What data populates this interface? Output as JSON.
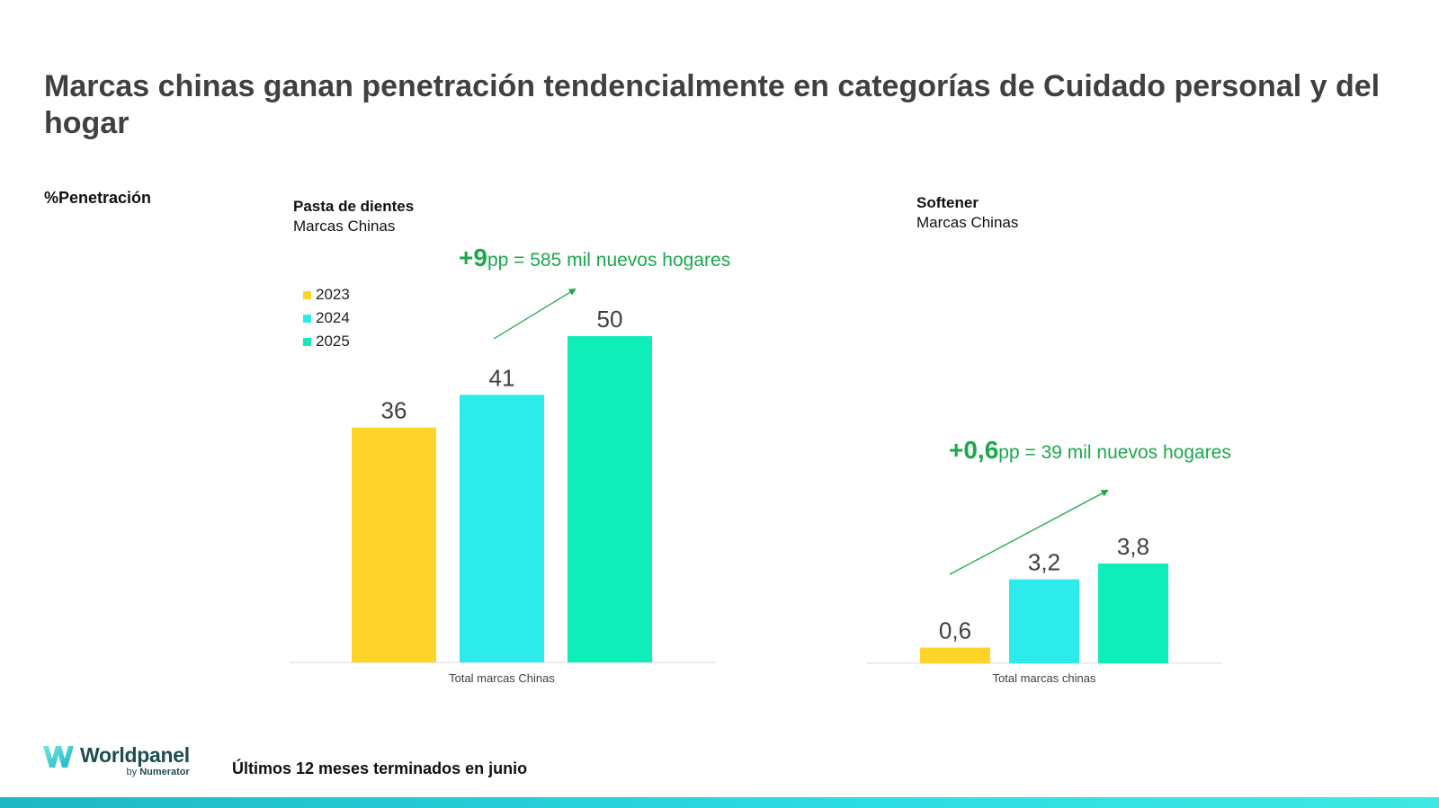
{
  "page": {
    "title": "Marcas chinas ganan penetración tendencialmente en categorías de Cuidado personal y del hogar",
    "metric_label": "%Penetración",
    "footer_note": "Últimos 12 meses terminados en junio",
    "logo": {
      "name": "Worldpanel",
      "by": "by",
      "brand": "Numerator"
    }
  },
  "colors": {
    "2023": "#FFD42A",
    "2024": "#2EEBEB",
    "2025": "#0FEDB8",
    "annotation": "#1AA84C"
  },
  "chart_data": [
    {
      "type": "bar",
      "title": "Pasta de dientes",
      "subtitle": "Marcas Chinas",
      "categories": [
        "Total marcas Chinas"
      ],
      "legend": [
        "2023",
        "2024",
        "2025"
      ],
      "series": [
        {
          "name": "2023",
          "values": [
            36
          ],
          "label": "36"
        },
        {
          "name": "2024",
          "values": [
            41
          ],
          "label": "41"
        },
        {
          "name": "2025",
          "values": [
            50
          ],
          "label": "50"
        }
      ],
      "ylim": [
        0,
        50
      ],
      "annotation": {
        "big": "+9",
        "rest": "pp = 585 mil nuevos hogares"
      }
    },
    {
      "type": "bar",
      "title": "Softener",
      "subtitle": "Marcas Chinas",
      "categories": [
        "Total marcas chinas"
      ],
      "series": [
        {
          "name": "2023",
          "values": [
            0.6
          ],
          "label": "0,6"
        },
        {
          "name": "2024",
          "values": [
            3.2
          ],
          "label": "3,2"
        },
        {
          "name": "2025",
          "values": [
            3.8
          ],
          "label": "3,8"
        }
      ],
      "ylim": [
        0,
        3.8
      ],
      "annotation": {
        "big": "+0,6",
        "rest": "pp = 39 mil nuevos hogares"
      }
    }
  ]
}
